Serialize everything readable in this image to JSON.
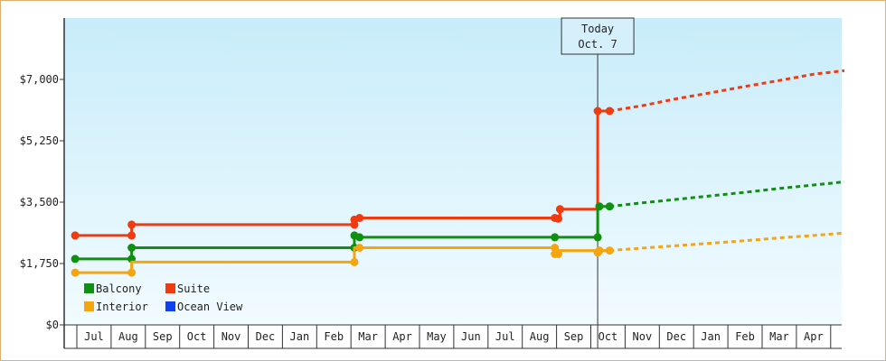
{
  "chart_data": {
    "type": "line",
    "title": "",
    "xlabel": "",
    "ylabel": "",
    "ylim": [
      0,
      8750
    ],
    "y_ticks": [
      {
        "value": 0,
        "label": "$0"
      },
      {
        "value": 1750,
        "label": "$1,750"
      },
      {
        "value": 3500,
        "label": "$3,500"
      },
      {
        "value": 5250,
        "label": "$5,250"
      },
      {
        "value": 7000,
        "label": "$7,000"
      }
    ],
    "x_months": [
      "Jul",
      "Aug",
      "Sep",
      "Oct",
      "Nov",
      "Dec",
      "Jan",
      "Feb",
      "Mar",
      "Apr",
      "May",
      "Jun",
      "Jul",
      "Aug",
      "Sep",
      "Oct",
      "Nov",
      "Dec",
      "Jan",
      "Feb",
      "Mar",
      "Apr"
    ],
    "grid": false,
    "legend_position": "bottom-left",
    "today_marker": {
      "line1": "Today",
      "line2": "Oct. 7",
      "month_pos": 15.2
    },
    "series": [
      {
        "name": "Suite",
        "color": "#f03a10",
        "points": [
          [
            -0.05,
            2550
          ],
          [
            1.6,
            2550
          ],
          [
            1.6,
            2860
          ],
          [
            8.1,
            2860
          ],
          [
            8.1,
            3000
          ],
          [
            8.25,
            3000
          ],
          [
            8.25,
            3050
          ],
          [
            13.95,
            3050
          ],
          [
            13.95,
            3030
          ],
          [
            14.1,
            3030
          ],
          [
            14.1,
            3300
          ],
          [
            15.25,
            3300
          ],
          [
            15.25,
            3400
          ],
          [
            15.2,
            3400
          ],
          [
            15.2,
            6100
          ],
          [
            15.55,
            6100
          ]
        ],
        "markers": [
          [
            -0.05,
            2550
          ],
          [
            1.6,
            2550
          ],
          [
            1.6,
            2860
          ],
          [
            8.1,
            2860
          ],
          [
            8.1,
            3000
          ],
          [
            8.25,
            3050
          ],
          [
            13.95,
            3050
          ],
          [
            14.05,
            3030
          ],
          [
            14.1,
            3300
          ],
          [
            15.2,
            6100
          ],
          [
            15.55,
            6100
          ]
        ],
        "projection": [
          [
            15.55,
            6100
          ],
          [
            16.5,
            6250
          ],
          [
            17.5,
            6450
          ],
          [
            18.5,
            6620
          ],
          [
            19.5,
            6800
          ],
          [
            20.5,
            6970
          ],
          [
            21.5,
            7150
          ],
          [
            22.4,
            7250
          ]
        ]
      },
      {
        "name": "Balcony",
        "color": "#109010",
        "points": [
          [
            -0.05,
            1880
          ],
          [
            1.6,
            1880
          ],
          [
            1.6,
            2200
          ],
          [
            8.1,
            2200
          ],
          [
            8.1,
            2550
          ],
          [
            8.25,
            2550
          ],
          [
            8.25,
            2500
          ],
          [
            13.95,
            2500
          ],
          [
            15.2,
            2500
          ],
          [
            15.2,
            3380
          ],
          [
            15.55,
            3380
          ]
        ],
        "markers": [
          [
            -0.05,
            1880
          ],
          [
            1.6,
            1880
          ],
          [
            1.6,
            2200
          ],
          [
            8.1,
            2200
          ],
          [
            8.1,
            2550
          ],
          [
            8.25,
            2500
          ],
          [
            13.95,
            2500
          ],
          [
            15.2,
            2500
          ],
          [
            15.25,
            3380
          ],
          [
            15.55,
            3380
          ]
        ],
        "projection": [
          [
            15.55,
            3380
          ],
          [
            16.5,
            3480
          ],
          [
            17.5,
            3580
          ],
          [
            18.5,
            3680
          ],
          [
            19.5,
            3780
          ],
          [
            20.5,
            3890
          ],
          [
            21.5,
            3990
          ],
          [
            22.4,
            4080
          ]
        ]
      },
      {
        "name": "Interior",
        "color": "#f5a510",
        "points": [
          [
            -0.05,
            1490
          ],
          [
            1.6,
            1490
          ],
          [
            1.6,
            1790
          ],
          [
            8.1,
            1790
          ],
          [
            8.1,
            2200
          ],
          [
            8.25,
            2200
          ],
          [
            13.95,
            2200
          ],
          [
            13.95,
            2120
          ],
          [
            15.2,
            2120
          ],
          [
            15.2,
            2120
          ],
          [
            15.55,
            2120
          ]
        ],
        "markers": [
          [
            -0.05,
            1490
          ],
          [
            1.6,
            1490
          ],
          [
            8.1,
            1790
          ],
          [
            8.25,
            2200
          ],
          [
            13.95,
            2200
          ],
          [
            13.95,
            2020
          ],
          [
            14.05,
            2020
          ],
          [
            15.2,
            2060
          ],
          [
            15.25,
            2120
          ],
          [
            15.55,
            2120
          ]
        ],
        "projection": [
          [
            15.55,
            2120
          ],
          [
            16.5,
            2190
          ],
          [
            17.5,
            2260
          ],
          [
            18.5,
            2330
          ],
          [
            19.5,
            2400
          ],
          [
            20.5,
            2480
          ],
          [
            21.5,
            2550
          ],
          [
            22.4,
            2620
          ]
        ]
      }
    ],
    "legend": [
      {
        "name": "Balcony",
        "color": "#109010"
      },
      {
        "name": "Suite",
        "color": "#f03a10"
      },
      {
        "name": "Interior",
        "color": "#f5a510"
      },
      {
        "name": "Ocean View",
        "color": "#1040f0"
      }
    ]
  }
}
